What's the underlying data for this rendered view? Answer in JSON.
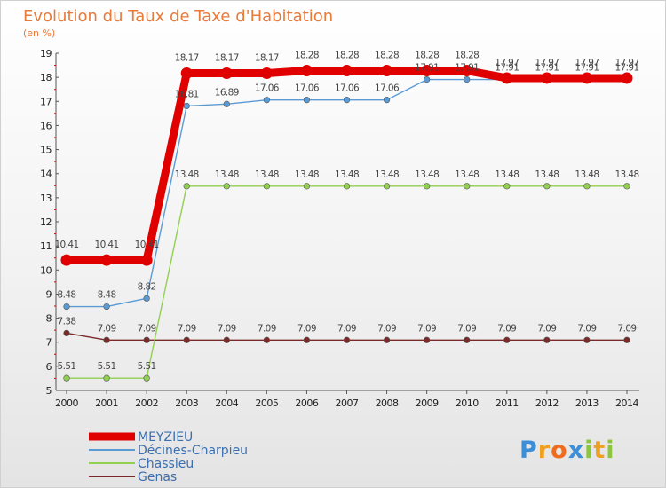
{
  "chart_data": {
    "type": "line",
    "title": "Evolution du Taux de Taxe d'Habitation",
    "subtitle": "(en %)",
    "xlabel": "",
    "ylabel": "",
    "ylim": [
      5,
      19
    ],
    "yticks": [
      5,
      6,
      7,
      8,
      9,
      10,
      11,
      12,
      13,
      14,
      15,
      16,
      17,
      18,
      19
    ],
    "x": [
      2000,
      2001,
      2002,
      2003,
      2004,
      2005,
      2006,
      2007,
      2008,
      2009,
      2010,
      2011,
      2012,
      2013,
      2014
    ],
    "series": [
      {
        "name": "MEYZIEU",
        "color": "#e00000",
        "values": [
          10.41,
          10.41,
          10.41,
          18.17,
          18.17,
          18.17,
          18.28,
          18.28,
          18.28,
          18.28,
          18.28,
          17.97,
          17.97,
          17.97,
          17.97
        ],
        "labels": [
          "10.41",
          "10.41",
          "10.41",
          "18.17",
          "18.17",
          "18.17",
          "18.28",
          "18.28",
          "18.28",
          "18.28",
          "18.28",
          "17.97",
          "17.97",
          "17.97",
          "17.97"
        ]
      },
      {
        "name": "Décines-Charpieu",
        "color": "#5b9bd5",
        "values": [
          8.48,
          8.48,
          8.82,
          16.81,
          16.89,
          17.06,
          17.06,
          17.06,
          17.06,
          17.91,
          17.91,
          17.91,
          17.91,
          17.91,
          17.91
        ],
        "labels": [
          "8.48",
          "8.48",
          "8.82",
          "16.81",
          "16.89",
          "17.06",
          "17.06",
          "17.06",
          "17.06",
          "17.91",
          "17.91",
          "17.91",
          "17.91",
          "17.91",
          "17.91"
        ]
      },
      {
        "name": "Chassieu",
        "color": "#92d050",
        "values": [
          5.51,
          5.51,
          5.51,
          13.48,
          13.48,
          13.48,
          13.48,
          13.48,
          13.48,
          13.48,
          13.48,
          13.48,
          13.48,
          13.48,
          13.48
        ],
        "labels": [
          "5.51",
          "5.51",
          "5.51",
          "13.48",
          "13.48",
          "13.48",
          "13.48",
          "13.48",
          "13.48",
          "13.48",
          "13.48",
          "13.48",
          "13.48",
          "13.48",
          "13.48"
        ]
      },
      {
        "name": "Genas",
        "color": "#7b2a2a",
        "values": [
          7.38,
          7.09,
          7.09,
          7.09,
          7.09,
          7.09,
          7.09,
          7.09,
          7.09,
          7.09,
          7.09,
          7.09,
          7.09,
          7.09,
          7.09
        ],
        "labels": [
          "7.38",
          "7.09",
          "7.09",
          "7.09",
          "7.09",
          "7.09",
          "7.09",
          "7.09",
          "7.09",
          "7.09",
          "7.09",
          "7.09",
          "7.09",
          "7.09",
          "7.09"
        ]
      }
    ],
    "legend": "bottom-left",
    "grid": false
  },
  "logo": {
    "letters": [
      "P",
      "r",
      "o",
      "x",
      "i",
      "t",
      "i"
    ],
    "colors": [
      "#3b8fd8",
      "#f0a020",
      "#ef6c1e",
      "#3b8fd8",
      "#8cc63f",
      "#f0a020",
      "#8cc63f"
    ]
  }
}
